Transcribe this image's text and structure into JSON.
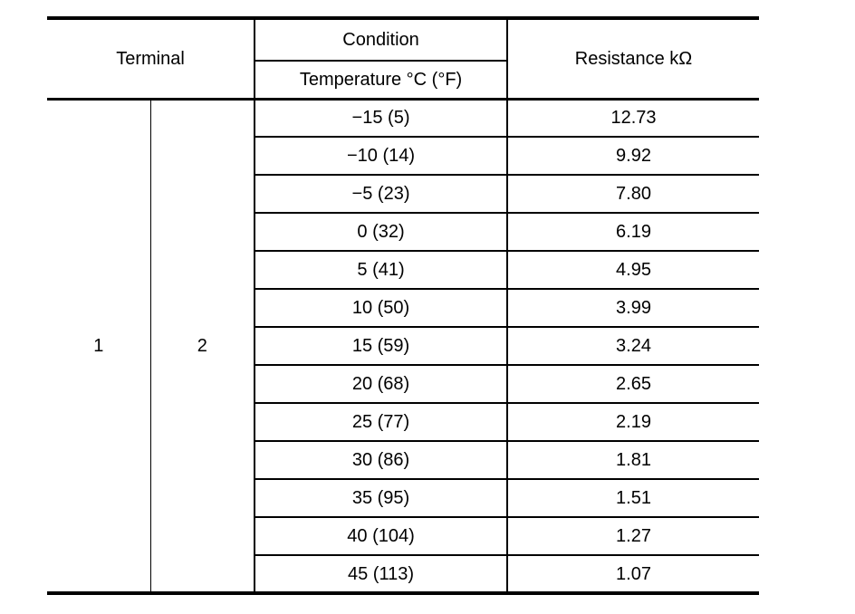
{
  "table": {
    "headers": {
      "terminal": "Terminal",
      "condition": "Condition",
      "temperature": "Temperature °C (°F)",
      "resistance": "Resistance kΩ"
    },
    "terminals": [
      "1",
      "2"
    ],
    "rows": [
      {
        "temperature": "−15 (5)",
        "resistance": "12.73"
      },
      {
        "temperature": "−10 (14)",
        "resistance": "9.92"
      },
      {
        "temperature": "−5 (23)",
        "resistance": "7.80"
      },
      {
        "temperature": "0 (32)",
        "resistance": "6.19"
      },
      {
        "temperature": "5 (41)",
        "resistance": "4.95"
      },
      {
        "temperature": "10 (50)",
        "resistance": "3.99"
      },
      {
        "temperature": "15 (59)",
        "resistance": "3.24"
      },
      {
        "temperature": "20 (68)",
        "resistance": "2.65"
      },
      {
        "temperature": "25 (77)",
        "resistance": "2.19"
      },
      {
        "temperature": "30 (86)",
        "resistance": "1.81"
      },
      {
        "temperature": "35 (95)",
        "resistance": "1.51"
      },
      {
        "temperature": "40 (104)",
        "resistance": "1.27"
      },
      {
        "temperature": "45 (113)",
        "resistance": "1.07"
      }
    ]
  },
  "colors": {
    "background": "#ffffff",
    "text": "#000000",
    "border": "#000000"
  }
}
